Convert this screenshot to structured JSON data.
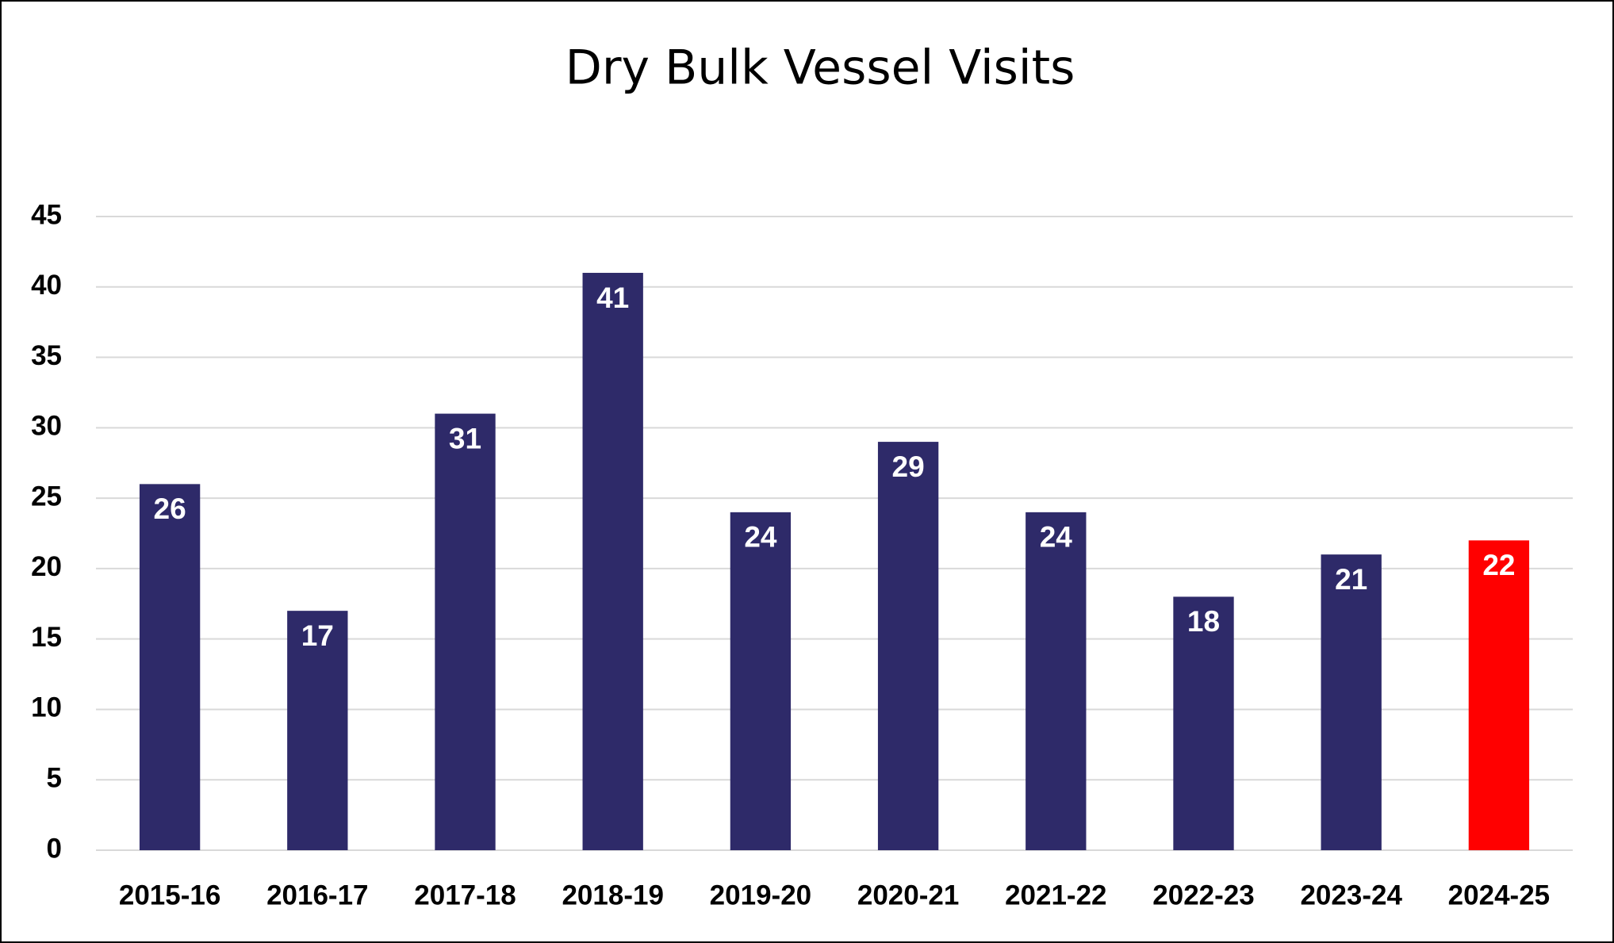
{
  "chart_data": {
    "type": "bar",
    "title": "Dry Bulk Vessel Visits",
    "categories": [
      "2015-16",
      "2016-17",
      "2017-18",
      "2018-19",
      "2019-20",
      "2020-21",
      "2021-22",
      "2022-23",
      "2023-24",
      "2024-25"
    ],
    "values": [
      26,
      17,
      31,
      41,
      24,
      29,
      24,
      18,
      21,
      22
    ],
    "colors": [
      "#2e2a69",
      "#2e2a69",
      "#2e2a69",
      "#2e2a69",
      "#2e2a69",
      "#2e2a69",
      "#2e2a69",
      "#2e2a69",
      "#2e2a69",
      "#ff0000"
    ],
    "ylim": [
      0,
      45
    ],
    "yticks": [
      0,
      5,
      10,
      15,
      20,
      25,
      30,
      35,
      40,
      45
    ],
    "grid": true
  }
}
